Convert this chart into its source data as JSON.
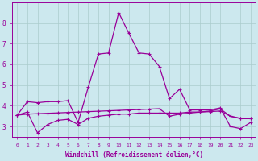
{
  "xlabel": "Windchill (Refroidissement éolien,°C)",
  "line1_x": [
    0,
    1,
    2,
    3,
    4,
    5,
    6,
    7,
    8,
    9,
    10,
    11,
    12,
    13,
    14,
    15,
    16,
    17,
    18,
    19,
    20,
    21,
    22,
    23
  ],
  "line1_y": [
    3.55,
    4.2,
    4.15,
    4.2,
    4.2,
    4.25,
    3.2,
    4.9,
    6.5,
    6.55,
    8.5,
    7.5,
    6.55,
    6.5,
    5.9,
    4.35,
    4.8,
    3.8,
    3.8,
    3.8,
    3.9,
    3.0,
    2.9,
    3.2
  ],
  "line2_x": [
    0,
    1,
    2,
    3,
    4,
    5,
    6,
    7,
    8,
    9,
    10,
    11,
    12,
    13,
    14,
    15,
    16,
    17,
    18,
    19,
    20,
    21,
    22,
    23
  ],
  "line2_y": [
    3.55,
    3.7,
    2.7,
    3.1,
    3.3,
    3.35,
    3.1,
    3.4,
    3.5,
    3.55,
    3.6,
    3.6,
    3.65,
    3.65,
    3.65,
    3.65,
    3.65,
    3.7,
    3.7,
    3.75,
    3.85,
    3.5,
    3.4,
    3.4
  ],
  "line3_x": [
    0,
    1,
    2,
    3,
    4,
    5,
    6,
    7,
    8,
    9,
    10,
    11,
    12,
    13,
    14,
    15,
    16,
    17,
    18,
    19,
    20,
    21,
    22,
    23
  ],
  "line3_y": [
    3.55,
    3.6,
    3.62,
    3.64,
    3.66,
    3.68,
    3.7,
    3.72,
    3.74,
    3.76,
    3.78,
    3.8,
    3.82,
    3.84,
    3.86,
    3.5,
    3.6,
    3.65,
    3.7,
    3.72,
    3.75,
    3.5,
    3.38,
    3.38
  ],
  "color": "#990099",
  "background_color": "#cce8ee",
  "grid_color": "#aacccc",
  "ylim": [
    2.5,
    9.0
  ],
  "xlim": [
    -0.5,
    23.5
  ],
  "yticks": [
    3,
    4,
    5,
    6,
    7,
    8
  ],
  "xticks": [
    0,
    1,
    2,
    3,
    4,
    5,
    6,
    7,
    8,
    9,
    10,
    11,
    12,
    13,
    14,
    15,
    16,
    17,
    18,
    19,
    20,
    21,
    22,
    23
  ]
}
